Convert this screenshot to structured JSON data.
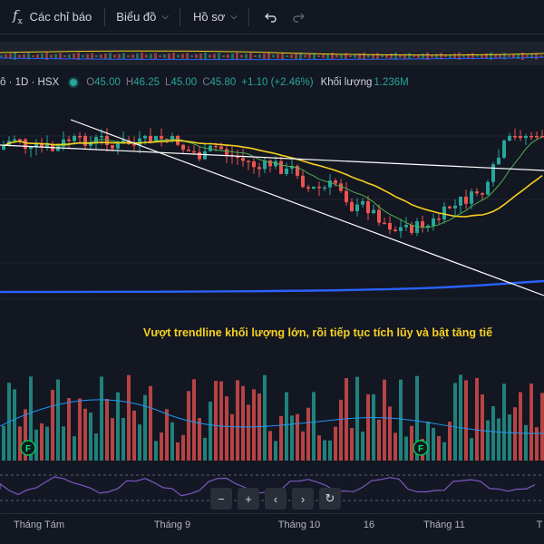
{
  "toolbar": {
    "indicators_label": "Các chỉ báo",
    "chart_label": "Biểu đồ",
    "profile_label": "Hồ sơ"
  },
  "legend": {
    "symbol": "ô · 1D · HSX",
    "open_label": "O",
    "open": "45.00",
    "high_label": "H",
    "high": "46.25",
    "low_label": "L",
    "low": "45.00",
    "close_label": "C",
    "close": "45.80",
    "change": "+1.10 (+2.46%)",
    "volume_label": "Khối lượng",
    "volume": "1.236M"
  },
  "annotation": "Vượt trendline khối lượng lớn, rồi tiếp tục tích lũy và bật tăng tiế",
  "earnings_marker": "F",
  "time_axis": [
    "Tháng Tám",
    "Tháng 9",
    "Tháng 10",
    "16",
    "Tháng 11",
    "T"
  ],
  "colors": {
    "up": "#26a69a",
    "down": "#ef5350",
    "ma_short": "#4caf50",
    "ma_mid": "#f5d020",
    "ma_long": "#2962ff",
    "trendline": "#ffffff",
    "volume_ma": "#2196f3"
  },
  "icons": [
    "fx-icon",
    "undo-icon",
    "redo-icon",
    "zoom-out-icon",
    "zoom-in-icon",
    "scroll-left-icon",
    "scroll-right-icon",
    "reset-icon"
  ]
}
